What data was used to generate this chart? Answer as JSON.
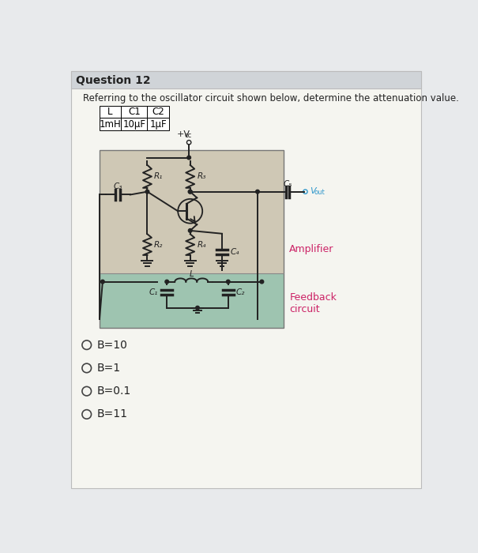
{
  "title": "Question 12",
  "question_text": "Referring to the oscillator circuit shown below, determine the attenuation value.",
  "table_headers": [
    "L",
    "C1",
    "C2"
  ],
  "table_values": [
    "1mH",
    "10μF",
    "1μF"
  ],
  "choices": [
    "B=10",
    "B=1",
    "B=0.1",
    "B=11"
  ],
  "amplifier_label": "Amplifier",
  "feedback_label": "Feedback\ncircuit",
  "bg_page": "#e8eaec",
  "bg_white": "#f5f5f0",
  "bg_amp": "#d8d0c0",
  "bg_fb": "#a8c8b8",
  "header_bg": "#d0d4d8",
  "border_color": "#999999",
  "amp_label_color": "#cc2266",
  "fb_label_color": "#cc2266",
  "vout_color": "#3399cc",
  "line_color": "#222222"
}
